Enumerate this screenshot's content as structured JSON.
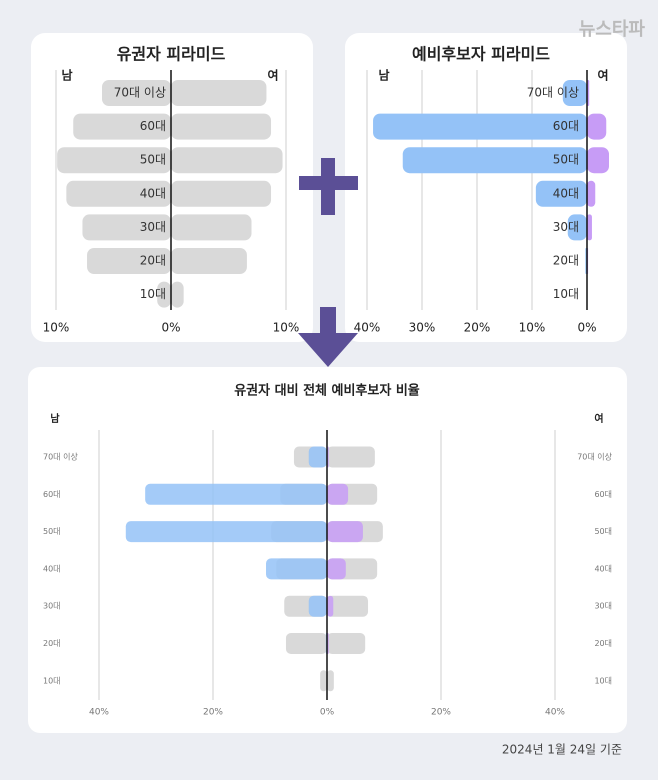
{
  "logo": "뉴스타파",
  "footnote": "2024년 1월 24일 기준",
  "chart_data": [
    {
      "type": "pyramid",
      "title": "유권자 피라미드",
      "left_label": "남",
      "right_label": "여",
      "categories": [
        "70대 이상",
        "60대",
        "50대",
        "40대",
        "30대",
        "20대",
        "10대"
      ],
      "xlim": [
        -10,
        10
      ],
      "xticks": [
        {
          "value": -10,
          "label": "10%"
        },
        {
          "value": 0,
          "label": "0%"
        },
        {
          "value": 10,
          "label": "10%"
        }
      ],
      "series": [
        {
          "side": "left",
          "color": "#d9d9d9",
          "values": [
            6.0,
            8.5,
            9.9,
            9.1,
            7.7,
            7.3,
            1.2
          ]
        },
        {
          "side": "right",
          "color": "#d9d9d9",
          "values": [
            8.3,
            8.7,
            9.7,
            8.7,
            7.0,
            6.6,
            1.1
          ]
        }
      ]
    },
    {
      "type": "pyramid",
      "title": "예비후보자 피라미드",
      "left_label": "남",
      "right_label": "여",
      "categories": [
        "70대 이상",
        "60대",
        "50대",
        "40대",
        "30대",
        "20대",
        "10대"
      ],
      "xlim": [
        -40,
        4
      ],
      "xticks": [
        {
          "value": -40,
          "label": "40%"
        },
        {
          "value": -30,
          "label": "30%"
        },
        {
          "value": -20,
          "label": "20%"
        },
        {
          "value": -10,
          "label": "10%"
        },
        {
          "value": 0,
          "label": "0%"
        }
      ],
      "series": [
        {
          "side": "left",
          "color": "#94c2f7",
          "values": [
            4.4,
            38.9,
            33.5,
            9.3,
            3.5,
            0.3,
            0
          ]
        },
        {
          "side": "right",
          "color": "#c79cf6",
          "values": [
            0.4,
            3.5,
            4.0,
            1.5,
            0.9,
            0.2,
            0
          ]
        }
      ]
    },
    {
      "type": "pyramid",
      "title": "유권자 대비 전체 예비후보자 비율",
      "left_label": "남",
      "right_label": "여",
      "categories": [
        "70대 이상",
        "60대",
        "50대",
        "40대",
        "30대",
        "20대",
        "10대"
      ],
      "xlim": [
        -40,
        40
      ],
      "xticks": [
        {
          "value": -40,
          "label": "40%"
        },
        {
          "value": -20,
          "label": "20%"
        },
        {
          "value": 0,
          "label": "0%"
        },
        {
          "value": 20,
          "label": "20%"
        },
        {
          "value": 40,
          "label": "40%"
        }
      ],
      "series": [
        {
          "side": "left",
          "color": "#d9d9d9",
          "values": [
            5.8,
            8.2,
            9.8,
            8.9,
            7.5,
            7.2,
            1.2
          ]
        },
        {
          "side": "right",
          "color": "#d9d9d9",
          "values": [
            8.4,
            8.8,
            9.8,
            8.8,
            7.2,
            6.7,
            1.2
          ]
        },
        {
          "side": "left",
          "color": "#94c2f7",
          "values": [
            3.2,
            31.9,
            35.3,
            10.7,
            3.2,
            0.2,
            0
          ]
        },
        {
          "side": "right",
          "color": "#c79cf6",
          "values": [
            0.3,
            3.7,
            6.3,
            3.3,
            1.1,
            0.3,
            0
          ]
        }
      ]
    }
  ]
}
